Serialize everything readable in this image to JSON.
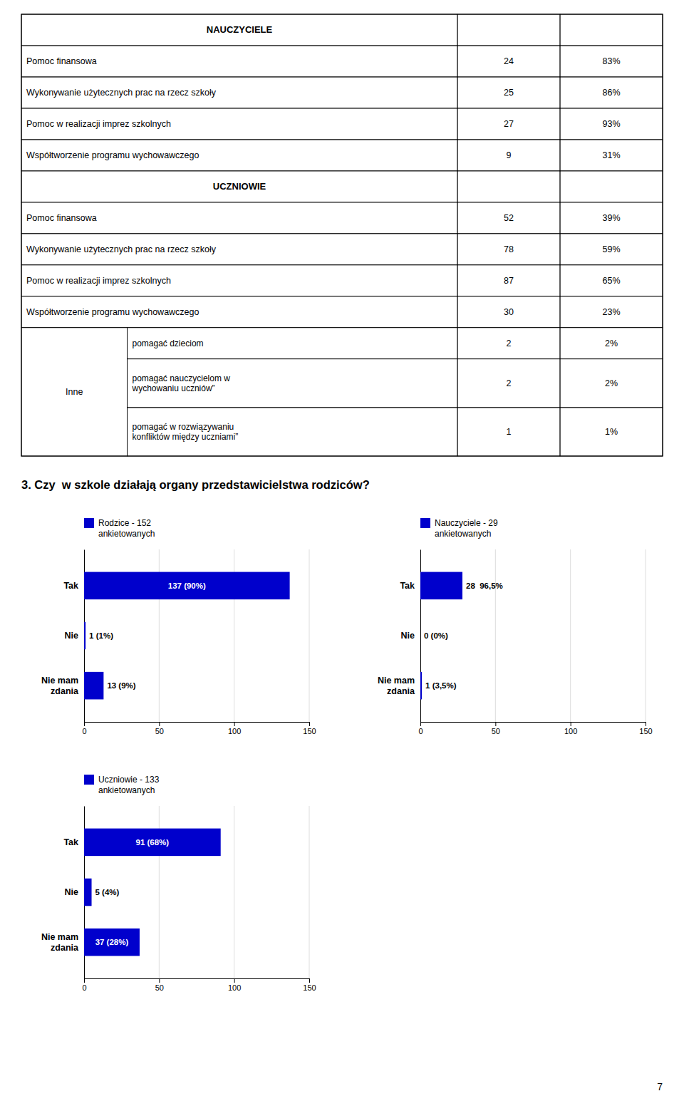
{
  "table": {
    "sections": [
      {
        "title": "NAUCZYCIELE",
        "rows": [
          [
            "Pomoc finansowa",
            "24",
            "83%"
          ],
          [
            "Wykonywanie użytecznych prac na rzecz szkoły",
            "25",
            "86%"
          ],
          [
            "Pomoc w realizacji imprez szkolnych",
            "27",
            "93%"
          ],
          [
            "Współtworzenie programu wychowawczego",
            "9",
            "31%"
          ]
        ]
      },
      {
        "title": "UCZNIOWIE",
        "rows": [
          [
            "Pomoc finansowa",
            "52",
            "39%"
          ],
          [
            "Wykonywanie użytecznych prac na rzecz szkoły",
            "78",
            "59%"
          ],
          [
            "Pomoc w realizacji imprez szkolnych",
            "87",
            "65%"
          ],
          [
            "Współtworzenie programu wychowawczego",
            "30",
            "23%"
          ]
        ]
      }
    ],
    "inne_label": "Inne",
    "inne_rows": [
      [
        "pomagać dzieciom",
        "2",
        "2%"
      ],
      [
        "pomagać nauczycielom w\nwychowaniu uczniów”",
        "2",
        "2%"
      ],
      [
        "pomagać w rozwiązywaniu\nkonfliktów między uczniami”",
        "1",
        "1%"
      ]
    ]
  },
  "question": "3. Czy  w szkole działają organy przedstawicielstwa rodziców?",
  "chart_data": [
    {
      "type": "bar",
      "orientation": "horizontal",
      "categories": [
        "Tak",
        "Nie",
        "Nie mam\nzdania"
      ],
      "series": [
        {
          "name": "Rodzice - 152\nankietowanych",
          "color": "#0000CC",
          "values": [
            137,
            1,
            13
          ],
          "value_labels": [
            "137 (90%)",
            "1 (1%)",
            "13 (9%)"
          ]
        }
      ],
      "xlim": [
        0,
        150
      ],
      "xticks": [
        0,
        50,
        100,
        150
      ],
      "grid": true,
      "legend": "top",
      "data_labels": true
    },
    {
      "type": "bar",
      "orientation": "horizontal",
      "categories": [
        "Tak",
        "Nie",
        "Nie mam\nzdania"
      ],
      "series": [
        {
          "name": "Nauczyciele - 29\nankietowanych",
          "color": "#0000CC",
          "values": [
            28,
            0,
            1
          ],
          "value_labels": [
            "28  96,5%",
            "0 (0%)",
            "1 (3,5%)"
          ]
        }
      ],
      "xlim": [
        0,
        150
      ],
      "xticks": [
        0,
        50,
        100,
        150
      ],
      "grid": true,
      "legend": "top",
      "data_labels": true
    },
    {
      "type": "bar",
      "orientation": "horizontal",
      "categories": [
        "Tak",
        "Nie",
        "Nie mam\nzdania"
      ],
      "series": [
        {
          "name": "Uczniowie - 133\nankietowanych",
          "color": "#0000CC",
          "values": [
            91,
            5,
            37
          ],
          "value_labels": [
            "91 (68%)",
            "5 (4%)",
            "37 (28%)"
          ]
        }
      ],
      "xlim": [
        0,
        150
      ],
      "xticks": [
        0,
        50,
        100,
        150
      ],
      "grid": true,
      "legend": "top",
      "data_labels": true
    }
  ],
  "page_number": "7"
}
